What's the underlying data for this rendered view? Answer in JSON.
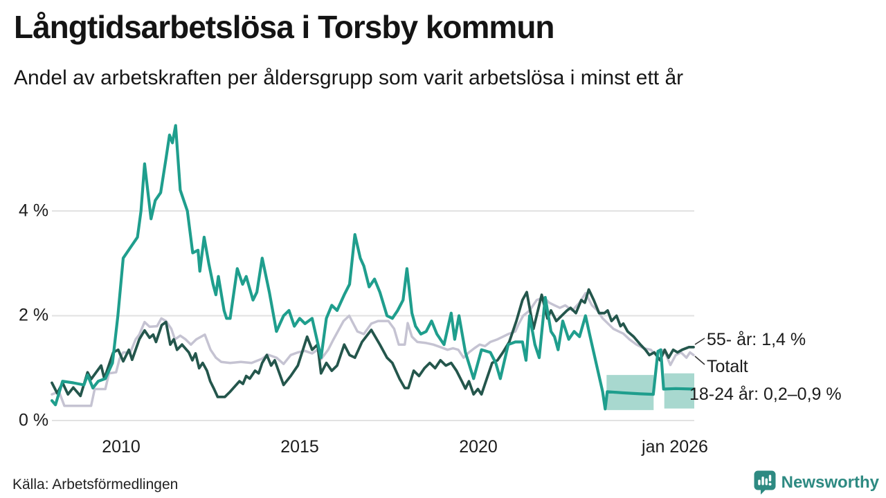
{
  "title": "Långtidsarbetslösa i Torsby kommun",
  "subtitle": "Andel av arbetskraften per åldersgrupp som varit arbetslösa i minst ett år",
  "source": "Källa: Arbetsförmedlingen",
  "logo": {
    "text": "Newsworthy"
  },
  "colors": {
    "accent_teal": "#1f9e8d",
    "dark_green": "#24564c",
    "light_gray": "#c5c3d2",
    "band_fill": "#a8d8cf",
    "grid": "#e2e2e2",
    "text": "#161616",
    "logo_teal": "#2e8a82",
    "connector": "#333333"
  },
  "chart_data": {
    "type": "line",
    "title": "Långtidsarbetslösa i Torsby kommun",
    "subtitle": "Andel av arbetskraften per åldersgrupp som varit arbetslösa i minst ett år",
    "x_unit": "year (monthly data)",
    "y_unit": "% av arbetskraften",
    "x_range": [
      2008,
      2026.02
    ],
    "ylim": [
      0,
      5.8
    ],
    "grid": "horizontal only",
    "y_ticks": [
      {
        "label": "4 %",
        "value": 4
      },
      {
        "label": "2 %",
        "value": 2
      },
      {
        "label": "0 %",
        "value": 0
      }
    ],
    "x_ticks": [
      {
        "label": "2010",
        "value": 2010
      },
      {
        "label": "2015",
        "value": 2015
      },
      {
        "label": "2020",
        "value": 2020
      },
      {
        "label": "jan 2026",
        "value": 2026
      }
    ],
    "series": [
      {
        "name": "Totalt",
        "color": "#c5c3d2",
        "x": [
          2008.0,
          2008.2,
          2008.35,
          2009.1,
          2009.2,
          2009.5,
          2009.6,
          2009.8,
          2009.9,
          2010.0,
          2010.2,
          2010.35,
          2010.45,
          2010.6,
          2010.74,
          2010.95,
          2011.07,
          2011.2,
          2011.35,
          2011.45,
          2011.6,
          2011.75,
          2011.9,
          2012.05,
          2012.29,
          2012.45,
          2012.6,
          2012.75,
          2013.0,
          2013.3,
          2013.6,
          2013.9,
          2014.05,
          2014.3,
          2014.5,
          2014.7,
          2014.9,
          2015.1,
          2015.3,
          2015.45,
          2015.55,
          2015.75,
          2015.9,
          2016.18,
          2016.34,
          2016.57,
          2016.75,
          2016.96,
          2017.15,
          2017.44,
          2017.6,
          2017.73,
          2017.9,
          2017.98,
          2018.1,
          2018.25,
          2018.5,
          2018.7,
          2018.9,
          2019.1,
          2019.25,
          2019.4,
          2019.55,
          2019.7,
          2019.85,
          2020.0,
          2020.15,
          2020.3,
          2020.5,
          2020.65,
          2020.8,
          2021.0,
          2021.1,
          2021.22,
          2021.4,
          2021.6,
          2021.8,
          2021.95,
          2022.1,
          2022.25,
          2022.4,
          2022.6,
          2022.8,
          2022.97,
          2023.15,
          2023.3,
          2023.45,
          2023.6,
          2023.75,
          2023.9,
          2024.03,
          2024.2,
          2024.4,
          2024.6,
          2024.8,
          2024.95,
          2025.1,
          2025.2,
          2025.35,
          2025.5,
          2025.65,
          2025.8,
          2025.9,
          2026.0
        ],
        "values": [
          0.5,
          0.55,
          0.28,
          0.28,
          0.6,
          0.6,
          0.9,
          0.92,
          1.18,
          1.3,
          1.3,
          1.55,
          1.64,
          1.88,
          1.79,
          1.8,
          1.95,
          1.9,
          1.75,
          1.55,
          1.62,
          1.55,
          1.45,
          1.55,
          1.64,
          1.35,
          1.2,
          1.12,
          1.1,
          1.12,
          1.1,
          1.18,
          1.26,
          1.2,
          1.08,
          1.25,
          1.3,
          1.33,
          1.28,
          1.35,
          1.17,
          1.35,
          1.55,
          1.9,
          2.0,
          1.7,
          1.65,
          1.85,
          1.9,
          1.9,
          1.75,
          1.45,
          1.45,
          1.86,
          1.6,
          1.5,
          1.48,
          1.45,
          1.4,
          1.35,
          1.38,
          1.35,
          1.2,
          1.3,
          1.38,
          1.45,
          1.42,
          1.5,
          1.55,
          1.6,
          1.65,
          1.7,
          1.85,
          2.0,
          2.1,
          2.3,
          2.35,
          2.25,
          2.2,
          2.15,
          2.2,
          2.1,
          2.25,
          2.43,
          2.2,
          2.1,
          1.95,
          1.85,
          1.75,
          1.7,
          1.66,
          1.55,
          1.45,
          1.38,
          1.35,
          1.25,
          1.35,
          1.3,
          1.06,
          1.25,
          1.3,
          1.2,
          1.3,
          1.25
        ]
      },
      {
        "name": "55- år",
        "color": "#24564c",
        "x": [
          2008.0,
          2008.15,
          2008.3,
          2008.45,
          2008.6,
          2008.8,
          2009.0,
          2009.1,
          2009.38,
          2009.47,
          2009.72,
          2009.86,
          2010.0,
          2010.16,
          2010.25,
          2010.45,
          2010.6,
          2010.74,
          2010.84,
          2010.92,
          2011.08,
          2011.2,
          2011.32,
          2011.42,
          2011.51,
          2011.65,
          2011.84,
          2011.94,
          2012.03,
          2012.13,
          2012.23,
          2012.35,
          2012.44,
          2012.55,
          2012.65,
          2012.85,
          2013.0,
          2013.26,
          2013.36,
          2013.45,
          2013.55,
          2013.7,
          2013.8,
          2013.9,
          2014.03,
          2014.15,
          2014.25,
          2014.5,
          2014.7,
          2014.9,
          2015.16,
          2015.3,
          2015.45,
          2015.55,
          2015.7,
          2015.85,
          2016.0,
          2016.2,
          2016.35,
          2016.5,
          2016.7,
          2016.96,
          2017.2,
          2017.4,
          2017.55,
          2017.75,
          2017.9,
          2018.0,
          2018.15,
          2018.3,
          2018.45,
          2018.6,
          2018.75,
          2018.9,
          2019.05,
          2019.2,
          2019.35,
          2019.5,
          2019.6,
          2019.7,
          2019.83,
          2019.95,
          2020.05,
          2020.2,
          2020.35,
          2020.5,
          2020.65,
          2020.83,
          2021.03,
          2021.2,
          2021.32,
          2021.51,
          2021.74,
          2021.9,
          2022.0,
          2022.15,
          2022.3,
          2022.45,
          2022.55,
          2022.7,
          2022.85,
          2022.95,
          2023.06,
          2023.2,
          2023.35,
          2023.5,
          2023.59,
          2023.7,
          2023.84,
          2023.95,
          2024.03,
          2024.15,
          2024.32,
          2024.51,
          2024.65,
          2024.76,
          2024.9,
          2025.06,
          2025.19,
          2025.3,
          2025.43,
          2025.55,
          2025.68,
          2025.87,
          2026.0
        ],
        "values": [
          0.72,
          0.52,
          0.72,
          0.5,
          0.63,
          0.47,
          0.92,
          0.79,
          1.05,
          0.8,
          1.3,
          1.35,
          1.13,
          1.35,
          1.16,
          1.55,
          1.72,
          1.58,
          1.64,
          1.5,
          1.82,
          1.88,
          1.45,
          1.55,
          1.35,
          1.45,
          1.3,
          1.15,
          1.28,
          1.0,
          1.1,
          0.95,
          0.75,
          0.6,
          0.45,
          0.45,
          0.55,
          0.75,
          0.7,
          0.85,
          0.8,
          0.95,
          0.9,
          1.1,
          1.25,
          1.05,
          1.15,
          0.68,
          0.85,
          1.05,
          1.6,
          1.35,
          1.45,
          0.9,
          1.1,
          0.95,
          1.05,
          1.45,
          1.25,
          1.2,
          1.5,
          1.73,
          1.45,
          1.2,
          1.1,
          0.8,
          0.62,
          0.62,
          0.95,
          0.85,
          1.0,
          1.1,
          1.0,
          1.15,
          1.05,
          1.1,
          0.95,
          0.75,
          0.61,
          0.75,
          0.5,
          0.6,
          0.5,
          0.8,
          1.1,
          1.15,
          1.3,
          1.5,
          1.9,
          2.3,
          2.45,
          1.75,
          2.4,
          1.95,
          2.1,
          1.9,
          2.0,
          2.1,
          2.15,
          2.05,
          2.3,
          2.25,
          2.5,
          2.3,
          2.05,
          2.05,
          2.1,
          1.9,
          2.0,
          1.8,
          1.85,
          1.7,
          1.6,
          1.45,
          1.35,
          1.25,
          1.3,
          1.15,
          1.35,
          1.2,
          1.35,
          1.3,
          1.35,
          1.4,
          1.4
        ]
      },
      {
        "name": "18-24 år",
        "color": "#1f9e8d",
        "x": [
          2008.0,
          2008.1,
          2008.3,
          2008.6,
          2008.9,
          2009.0,
          2009.15,
          2009.3,
          2009.5,
          2009.7,
          2009.85,
          2010.0,
          2010.2,
          2010.4,
          2010.5,
          2010.6,
          2010.78,
          2010.9,
          2011.05,
          2011.2,
          2011.3,
          2011.38,
          2011.47,
          2011.6,
          2011.7,
          2011.8,
          2011.95,
          2012.1,
          2012.15,
          2012.27,
          2012.4,
          2012.52,
          2012.6,
          2012.67,
          2012.83,
          2012.9,
          2013.0,
          2013.2,
          2013.35,
          2013.45,
          2013.64,
          2013.75,
          2013.9,
          2014.1,
          2014.3,
          2014.5,
          2014.65,
          2014.8,
          2014.95,
          2015.1,
          2015.3,
          2015.55,
          2015.7,
          2015.85,
          2016.0,
          2016.2,
          2016.35,
          2016.5,
          2016.65,
          2016.75,
          2016.9,
          2017.05,
          2017.2,
          2017.4,
          2017.55,
          2017.7,
          2017.85,
          2017.96,
          2018.1,
          2018.2,
          2018.35,
          2018.5,
          2018.65,
          2018.8,
          2019.0,
          2019.2,
          2019.3,
          2019.42,
          2019.6,
          2019.83,
          2020.05,
          2020.3,
          2020.45,
          2020.58,
          2020.8,
          2021.0,
          2021.2,
          2021.3,
          2021.4,
          2021.55,
          2021.67,
          2021.84,
          2022.0,
          2022.1,
          2022.2,
          2022.33,
          2022.5,
          2022.65,
          2022.8,
          2022.97,
          2023.1,
          2023.3,
          2023.45,
          2023.52,
          2023.58,
          2024.0,
          2024.5,
          2024.87,
          2025.0,
          2025.08,
          2025.16,
          2025.5,
          2026.0
        ],
        "values": [
          0.38,
          0.3,
          0.75,
          0.72,
          0.68,
          0.87,
          0.62,
          0.75,
          0.8,
          1.1,
          2.0,
          3.1,
          3.3,
          3.5,
          4.0,
          4.9,
          3.85,
          4.2,
          4.35,
          5.0,
          5.45,
          5.3,
          5.63,
          4.4,
          4.2,
          4.0,
          3.2,
          3.25,
          2.85,
          3.5,
          3.0,
          2.6,
          2.4,
          2.75,
          2.1,
          1.95,
          1.95,
          2.9,
          2.6,
          2.75,
          2.3,
          2.45,
          3.1,
          2.45,
          1.7,
          2.0,
          2.1,
          1.8,
          1.95,
          1.85,
          1.95,
          1.2,
          1.95,
          2.2,
          2.1,
          2.4,
          2.6,
          3.55,
          3.1,
          2.95,
          2.55,
          2.7,
          2.45,
          2.0,
          1.95,
          2.1,
          2.3,
          2.9,
          2.05,
          1.8,
          1.65,
          1.7,
          1.9,
          1.65,
          1.45,
          2.05,
          1.55,
          2.0,
          1.3,
          0.8,
          1.35,
          1.3,
          1.1,
          0.8,
          1.45,
          1.5,
          1.5,
          1.15,
          2.0,
          1.45,
          1.2,
          2.35,
          1.7,
          1.6,
          1.35,
          1.9,
          1.55,
          1.7,
          1.6,
          2.0,
          1.6,
          1.0,
          0.55,
          0.22,
          0.55,
          0.53,
          0.51,
          0.5,
          1.32,
          1.35,
          0.6,
          0.61,
          0.6
        ]
      }
    ],
    "band": {
      "meaning": "uncertainty interval for 18-24 år",
      "color": "#a8d8cf",
      "segments": [
        {
          "x0": 2023.56,
          "x1": 2024.88,
          "low": 0.2,
          "high": 0.87
        },
        {
          "x0": 2025.18,
          "x1": 2026.02,
          "low": 0.23,
          "high": 0.9
        }
      ]
    },
    "annotations": [
      {
        "label": "55- år: 1,4 %",
        "series": "55- år",
        "end_value": 1.4
      },
      {
        "label": "Totalt",
        "series": "Totalt",
        "end_value": 1.25
      },
      {
        "label": "18-24 år: 0,2–0,9 %",
        "series": "18-24 år",
        "end_value": 0.6
      }
    ],
    "legend_position": "right edge, direct line labels"
  }
}
